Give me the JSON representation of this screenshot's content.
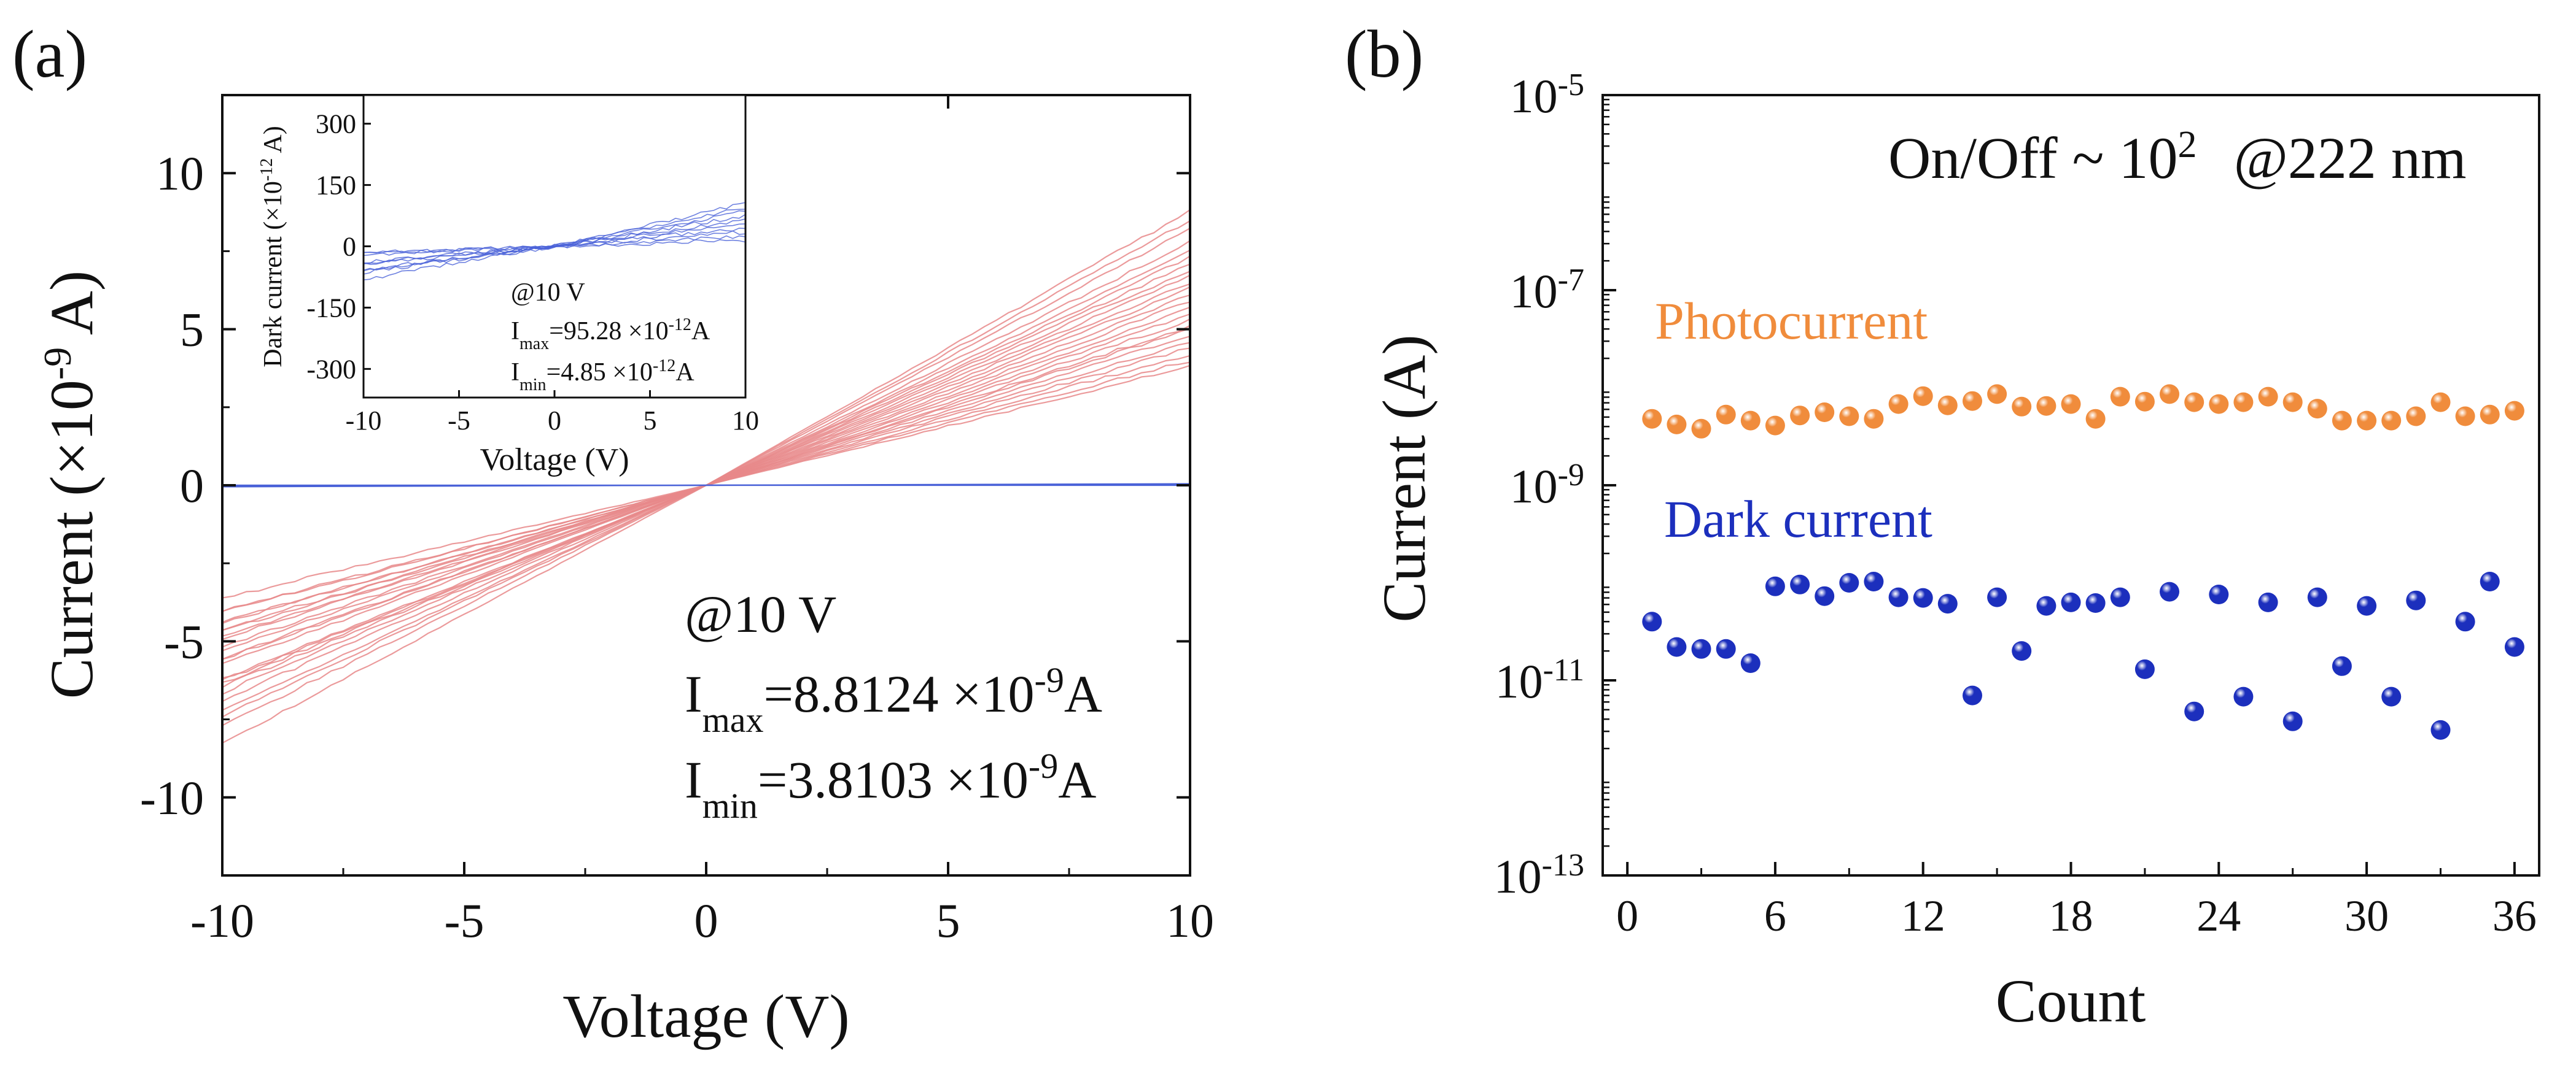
{
  "chart_data": [
    {
      "panel_label": "(a)",
      "type": "line",
      "title": "",
      "xlabel": "Voltage (V)",
      "ylabel_prefix": "Current (×10",
      "ylabel_exp": "-9",
      "ylabel_suffix": " A)",
      "xlim": [
        -10,
        10
      ],
      "ylim": [
        -12.5,
        12.5
      ],
      "xticks": [
        -10,
        -5,
        0,
        5,
        10
      ],
      "yticks": [
        -10,
        -5,
        0,
        5,
        10
      ],
      "grid": false,
      "photo_slopes_nA_per_V": [
        0.88,
        0.85,
        0.82,
        0.78,
        0.75,
        0.73,
        0.71,
        0.69,
        0.67,
        0.65,
        0.63,
        0.61,
        0.59,
        0.57,
        0.55,
        0.53,
        0.51,
        0.5,
        0.48,
        0.46,
        0.44,
        0.42,
        0.4,
        0.38
      ],
      "negative_branch_scale": [
        0.82,
        0.95,
        1.1,
        0.9,
        1.05,
        1.15,
        0.88,
        1.0,
        1.12,
        0.93,
        1.08,
        0.86,
        1.02,
        1.18,
        0.97,
        0.9,
        1.1,
        1.0,
        1.2,
        0.95,
        1.15,
        1.05,
        0.98,
        1.25
      ],
      "photo_series_name": "Photocurrent",
      "dark_series_name": "Dark current",
      "dark_value_nA": 0.0,
      "annotation": {
        "bias": "@10 V",
        "imax_label": "I",
        "imax_sub": "max",
        "imax_value": "=8.8124 ×10",
        "imax_exp": "-9",
        "imax_unit": "A",
        "imin_label": "I",
        "imin_sub": "min",
        "imin_value": "=3.8103 ×10",
        "imin_exp": "-9",
        "imin_unit": "A"
      },
      "inset": {
        "xlabel": "Voltage (V)",
        "ylabel_prefix": "Dark current (×10",
        "ylabel_exp": "-12",
        "ylabel_suffix": " A)",
        "xlim": [
          -10,
          10
        ],
        "ylim": [
          -370,
          370
        ],
        "xticks": [
          -10,
          -5,
          0,
          5,
          10
        ],
        "yticks": [
          -300,
          -150,
          0,
          150,
          300
        ],
        "dark_slopes_pA_per_V": [
          10.5,
          9.5,
          8.5,
          7.5,
          6.5,
          5.5,
          4.5,
          3.5,
          2.5,
          1.5
        ],
        "neg_scale": [
          0.9,
          0.75,
          0.8,
          1.0,
          0.7,
          0.85,
          1.1,
          0.6,
          0.95,
          1.2
        ],
        "annotation": {
          "bias": "@10 V",
          "imax_label": "I",
          "imax_sub": "max",
          "imax_value": "=95.28 ×10",
          "imax_exp": "-12",
          "imax_unit": "A",
          "imin_label": "I",
          "imin_sub": "min",
          "imin_value": "=4.85 ×10",
          "imin_exp": "-12",
          "imin_unit": "A"
        }
      },
      "colors": {
        "photo": "#e8888a",
        "dark": "#4a62d8",
        "axis": "#111111"
      }
    },
    {
      "panel_label": "(b)",
      "type": "scatter",
      "title": "",
      "xlabel": "Count",
      "ylabel": "Current (A)",
      "xlim": [
        -1,
        37
      ],
      "ylim_log10": [
        -13,
        -5
      ],
      "xticks": [
        0,
        6,
        12,
        18,
        24,
        30,
        36
      ],
      "ytick_exponents": [
        -13,
        -11,
        -9,
        -7,
        -5
      ],
      "grid": false,
      "x": [
        1,
        2,
        3,
        4,
        5,
        6,
        7,
        8,
        9,
        10,
        11,
        12,
        13,
        14,
        15,
        16,
        17,
        18,
        19,
        20,
        21,
        22,
        23,
        24,
        25,
        26,
        27,
        28,
        29,
        30,
        31,
        32,
        33,
        34,
        35,
        36
      ],
      "series": [
        {
          "name": "Photocurrent",
          "color": "#f08c3c",
          "values": [
            4.8e-09,
            4.2e-09,
            3.8e-09,
            5.3e-09,
            4.6e-09,
            4.1e-09,
            5.2e-09,
            5.6e-09,
            5.1e-09,
            4.8e-09,
            6.8e-09,
            8.2e-09,
            6.6e-09,
            7.3e-09,
            8.6e-09,
            6.4e-09,
            6.5e-09,
            6.8e-09,
            4.8e-09,
            8.1e-09,
            7.2e-09,
            8.6e-09,
            7.1e-09,
            6.8e-09,
            7.1e-09,
            8.1e-09,
            7.1e-09,
            6.1e-09,
            4.6e-09,
            4.6e-09,
            4.6e-09,
            5.1e-09,
            7.1e-09,
            5.1e-09,
            5.3e-09,
            5.8e-09
          ]
        },
        {
          "name": "Dark current",
          "color": "#1c2fbd",
          "values": [
            4e-11,
            2.2e-11,
            2.1e-11,
            2.1e-11,
            1.5e-11,
            9.2e-11,
            9.6e-11,
            7.3e-11,
            1e-10,
            1.03e-10,
            7.1e-11,
            7e-11,
            6.1e-11,
            7e-12,
            7.1e-11,
            2e-11,
            5.8e-11,
            6.3e-11,
            6.2e-11,
            7.1e-11,
            1.3e-11,
            8.1e-11,
            4.8e-12,
            7.6e-11,
            6.8e-12,
            6.3e-11,
            3.8e-12,
            7.1e-11,
            1.4e-11,
            5.8e-11,
            6.8e-12,
            6.6e-11,
            3.1e-12,
            4e-11,
            1.03e-10,
            2.2e-11
          ]
        }
      ],
      "legend_text_photo": "Photocurrent",
      "legend_text_dark": "Dark current",
      "onoff_text_prefix": "On/Off ~ 10",
      "onoff_text_exp": "2",
      "onoff_text_suffix": "@222 nm",
      "ytick_base": "10"
    }
  ]
}
